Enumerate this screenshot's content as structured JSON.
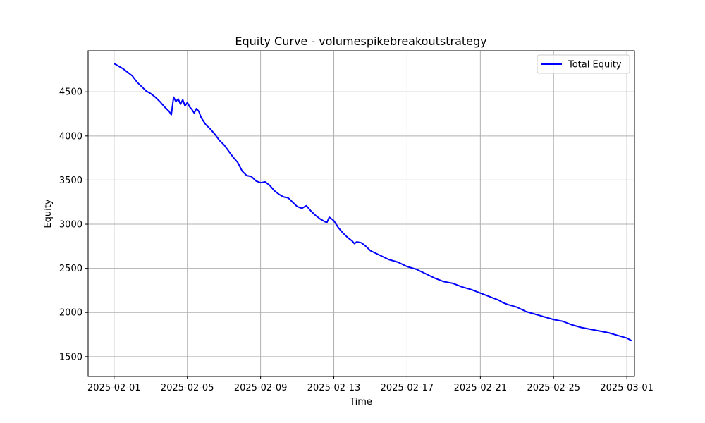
{
  "chart_data": {
    "type": "line",
    "title": "Equity Curve - volumespikebreakoutstrategy",
    "xlabel": "Time",
    "ylabel": "Equity",
    "x_ticks": [
      "2025-02-01",
      "2025-02-05",
      "2025-02-09",
      "2025-02-13",
      "2025-02-17",
      "2025-02-21",
      "2025-02-25",
      "2025-03-01"
    ],
    "y_ticks": [
      1500,
      2000,
      2500,
      3000,
      3500,
      4000,
      4500
    ],
    "xlim": [
      "2025-01-30T14:00",
      "2025-03-01T10:00"
    ],
    "ylim": [
      1275,
      4965
    ],
    "grid": true,
    "legend_position": "top-right",
    "series": [
      {
        "name": "Total Equity",
        "color": "#0000ff",
        "points": [
          [
            "2025-02-01T00:00",
            4820
          ],
          [
            "2025-02-01T06:00",
            4790
          ],
          [
            "2025-02-01T12:00",
            4760
          ],
          [
            "2025-02-01T18:00",
            4720
          ],
          [
            "2025-02-02T00:00",
            4680
          ],
          [
            "2025-02-02T06:00",
            4610
          ],
          [
            "2025-02-02T12:00",
            4560
          ],
          [
            "2025-02-02T18:00",
            4510
          ],
          [
            "2025-02-03T00:00",
            4480
          ],
          [
            "2025-02-03T06:00",
            4440
          ],
          [
            "2025-02-03T12:00",
            4390
          ],
          [
            "2025-02-03T18:00",
            4330
          ],
          [
            "2025-02-04T00:00",
            4280
          ],
          [
            "2025-02-04T03:00",
            4240
          ],
          [
            "2025-02-04T06:00",
            4440
          ],
          [
            "2025-02-04T09:00",
            4390
          ],
          [
            "2025-02-04T12:00",
            4420
          ],
          [
            "2025-02-04T15:00",
            4360
          ],
          [
            "2025-02-04T18:00",
            4410
          ],
          [
            "2025-02-04T21:00",
            4340
          ],
          [
            "2025-02-05T00:00",
            4380
          ],
          [
            "2025-02-05T03:00",
            4330
          ],
          [
            "2025-02-05T06:00",
            4300
          ],
          [
            "2025-02-05T09:00",
            4260
          ],
          [
            "2025-02-05T12:00",
            4310
          ],
          [
            "2025-02-05T15:00",
            4280
          ],
          [
            "2025-02-05T18:00",
            4210
          ],
          [
            "2025-02-06T00:00",
            4130
          ],
          [
            "2025-02-06T06:00",
            4080
          ],
          [
            "2025-02-06T12:00",
            4020
          ],
          [
            "2025-02-06T18:00",
            3950
          ],
          [
            "2025-02-07T00:00",
            3900
          ],
          [
            "2025-02-07T06:00",
            3830
          ],
          [
            "2025-02-07T12:00",
            3760
          ],
          [
            "2025-02-07T18:00",
            3700
          ],
          [
            "2025-02-08T00:00",
            3600
          ],
          [
            "2025-02-08T06:00",
            3550
          ],
          [
            "2025-02-08T12:00",
            3540
          ],
          [
            "2025-02-08T18:00",
            3490
          ],
          [
            "2025-02-09T00:00",
            3470
          ],
          [
            "2025-02-09T06:00",
            3480
          ],
          [
            "2025-02-09T12:00",
            3440
          ],
          [
            "2025-02-09T18:00",
            3380
          ],
          [
            "2025-02-10T00:00",
            3340
          ],
          [
            "2025-02-10T06:00",
            3310
          ],
          [
            "2025-02-10T12:00",
            3300
          ],
          [
            "2025-02-10T18:00",
            3250
          ],
          [
            "2025-02-11T00:00",
            3200
          ],
          [
            "2025-02-11T06:00",
            3180
          ],
          [
            "2025-02-11T12:00",
            3210
          ],
          [
            "2025-02-11T18:00",
            3150
          ],
          [
            "2025-02-12T00:00",
            3100
          ],
          [
            "2025-02-12T06:00",
            3060
          ],
          [
            "2025-02-12T12:00",
            3030
          ],
          [
            "2025-02-12T15:00",
            3020
          ],
          [
            "2025-02-12T18:00",
            3080
          ],
          [
            "2025-02-13T00:00",
            3040
          ],
          [
            "2025-02-13T06:00",
            2960
          ],
          [
            "2025-02-13T12:00",
            2900
          ],
          [
            "2025-02-13T18:00",
            2850
          ],
          [
            "2025-02-14T00:00",
            2810
          ],
          [
            "2025-02-14T03:00",
            2780
          ],
          [
            "2025-02-14T06:00",
            2800
          ],
          [
            "2025-02-14T12:00",
            2790
          ],
          [
            "2025-02-14T18:00",
            2750
          ],
          [
            "2025-02-15T00:00",
            2700
          ],
          [
            "2025-02-15T12:00",
            2650
          ],
          [
            "2025-02-16T00:00",
            2600
          ],
          [
            "2025-02-16T12:00",
            2570
          ],
          [
            "2025-02-17T00:00",
            2520
          ],
          [
            "2025-02-17T12:00",
            2490
          ],
          [
            "2025-02-18T00:00",
            2440
          ],
          [
            "2025-02-18T12:00",
            2390
          ],
          [
            "2025-02-19T00:00",
            2350
          ],
          [
            "2025-02-19T12:00",
            2330
          ],
          [
            "2025-02-20T00:00",
            2290
          ],
          [
            "2025-02-20T12:00",
            2260
          ],
          [
            "2025-02-21T00:00",
            2220
          ],
          [
            "2025-02-21T12:00",
            2180
          ],
          [
            "2025-02-22T00:00",
            2140
          ],
          [
            "2025-02-22T06:00",
            2110
          ],
          [
            "2025-02-22T12:00",
            2090
          ],
          [
            "2025-02-23T00:00",
            2060
          ],
          [
            "2025-02-23T12:00",
            2010
          ],
          [
            "2025-02-24T00:00",
            1980
          ],
          [
            "2025-02-24T12:00",
            1950
          ],
          [
            "2025-02-25T00:00",
            1920
          ],
          [
            "2025-02-25T12:00",
            1900
          ],
          [
            "2025-02-26T00:00",
            1860
          ],
          [
            "2025-02-26T12:00",
            1830
          ],
          [
            "2025-02-27T00:00",
            1810
          ],
          [
            "2025-02-27T12:00",
            1790
          ],
          [
            "2025-02-28T00:00",
            1770
          ],
          [
            "2025-02-28T12:00",
            1740
          ],
          [
            "2025-03-01T00:00",
            1710
          ],
          [
            "2025-03-01T06:00",
            1680
          ]
        ]
      }
    ]
  }
}
